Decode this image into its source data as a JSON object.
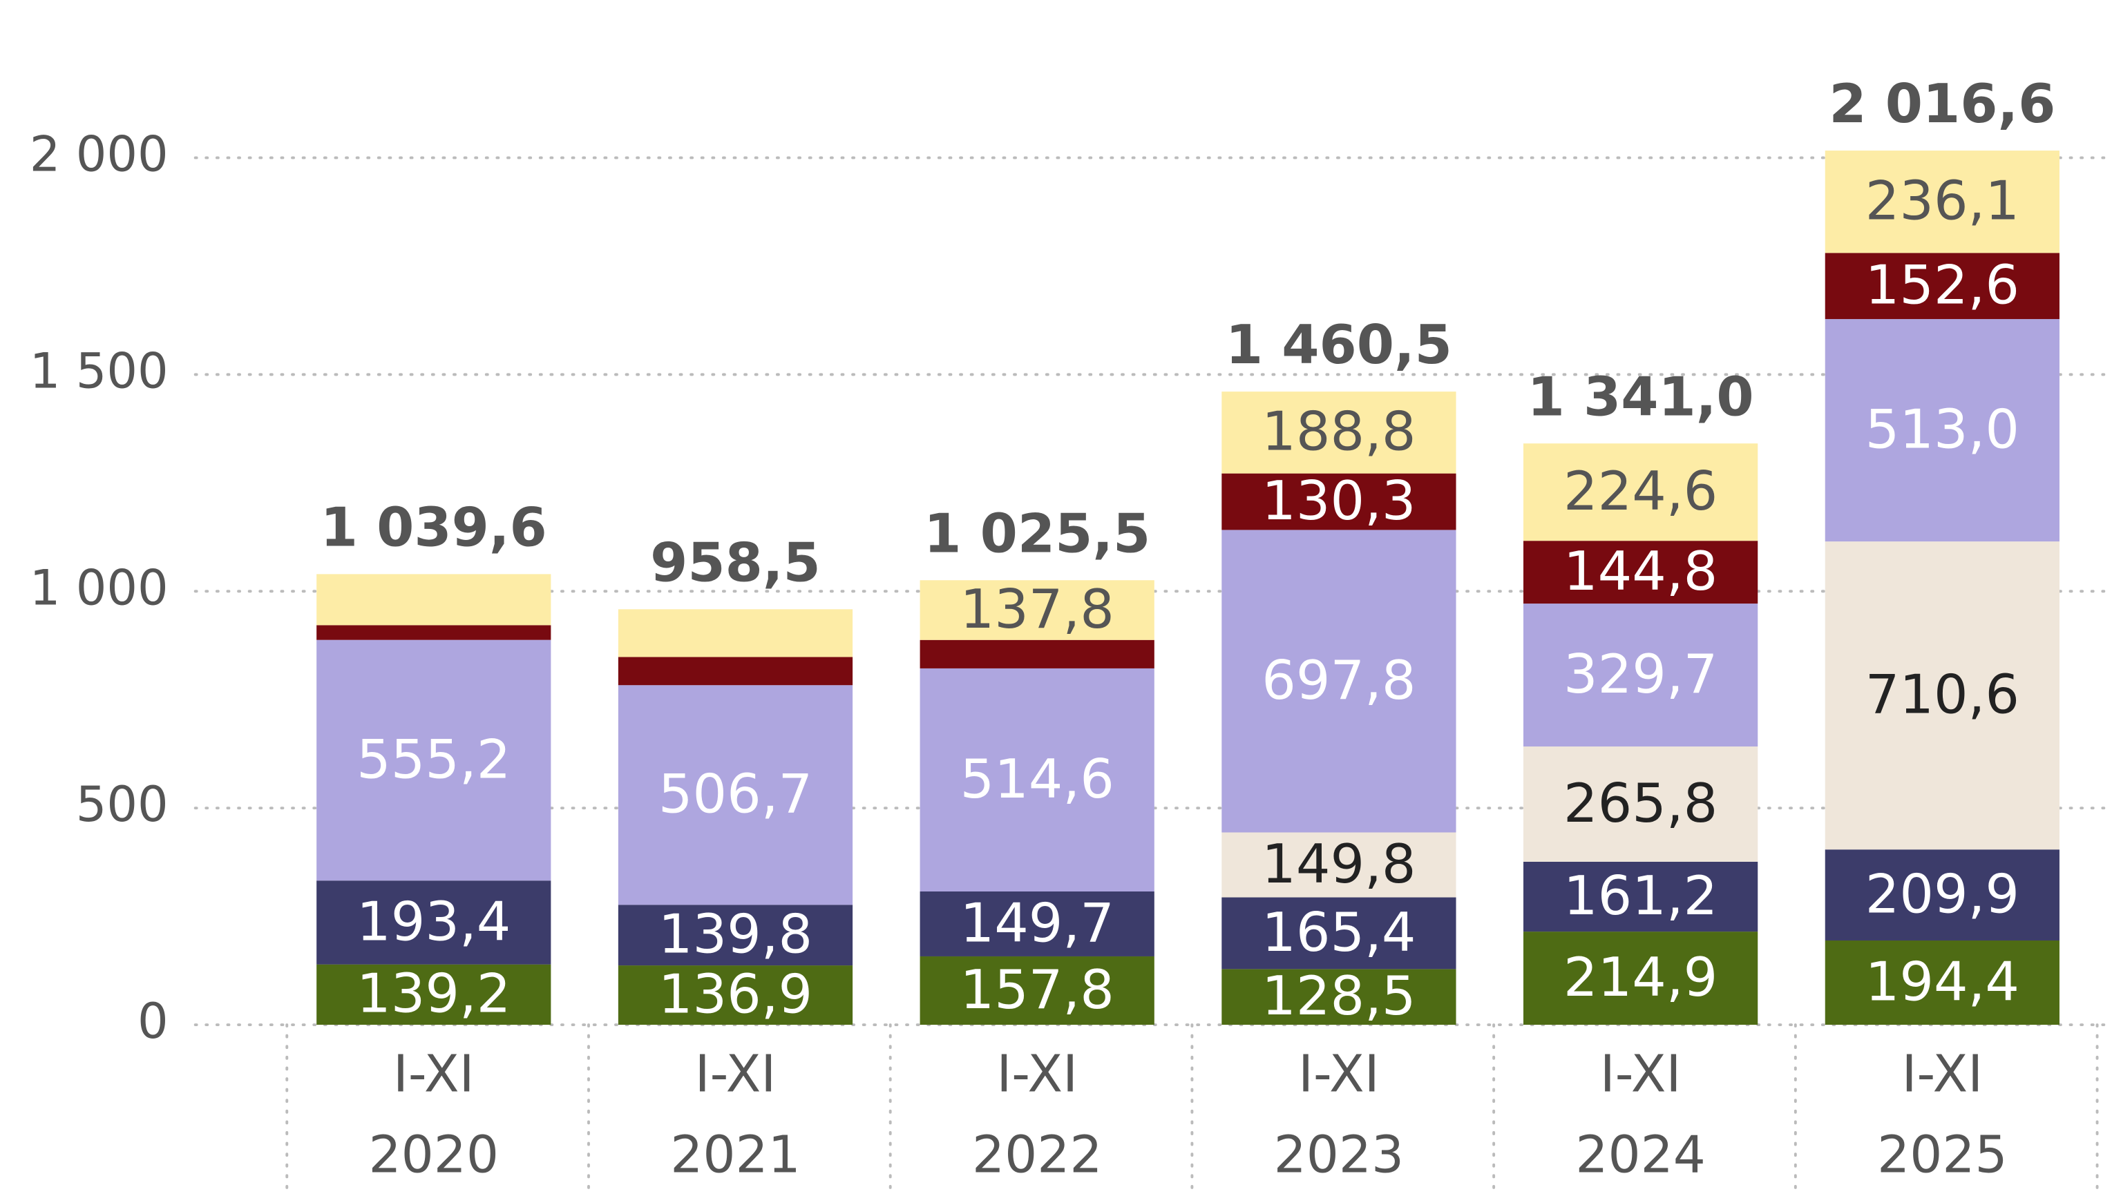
{
  "chart_data": {
    "type": "stacked-bar",
    "categories": [
      [
        "I-XI",
        "2020"
      ],
      [
        "I-XI",
        "2021"
      ],
      [
        "I-XI",
        "2022"
      ],
      [
        "I-XI",
        "2023"
      ],
      [
        "I-XI",
        "2024"
      ],
      [
        "I-XI",
        "2025"
      ]
    ],
    "series": [
      {
        "color": "#4e6b14",
        "label_color": "#ffffff",
        "values": [
          139.2,
          136.9,
          157.8,
          128.5,
          214.9,
          194.4
        ],
        "value_labels": [
          "139,2",
          "136,9",
          "157,8",
          "128,5",
          "214,9",
          "194,4"
        ]
      },
      {
        "color": "#3c3c6a",
        "label_color": "#ffffff",
        "values": [
          193.4,
          139.8,
          149.7,
          165.4,
          161.2,
          209.9
        ],
        "value_labels": [
          "193,4",
          "139,8",
          "149,7",
          "165,4",
          "161,2",
          "209,9"
        ]
      },
      {
        "color": "#efe6da",
        "label_color": "#222222",
        "values": [
          null,
          null,
          null,
          149.8,
          265.8,
          710.6
        ],
        "value_labels": [
          null,
          null,
          null,
          "149,8",
          "265,8",
          "710,6"
        ]
      },
      {
        "color": "#aea6df",
        "label_color": "#ffffff",
        "values": [
          555.2,
          506.7,
          514.6,
          697.8,
          329.7,
          513.0
        ],
        "value_labels": [
          "555,2",
          "506,7",
          "514,6",
          "697,8",
          "329,7",
          "513,0"
        ]
      },
      {
        "color": "#780a10",
        "label_color": "#ffffff",
        "values": [
          34,
          65,
          65.6,
          130.3,
          144.8,
          152.6
        ],
        "value_labels": [
          null,
          null,
          null,
          "130,3",
          "144,8",
          "152,6"
        ]
      },
      {
        "color": "#fdeca6",
        "label_color": "#555555",
        "values": [
          117.8,
          110.1,
          137.8,
          188.8,
          224.6,
          236.1
        ],
        "value_labels": [
          null,
          null,
          "137,8",
          "188,8",
          "224,6",
          "236,1"
        ]
      }
    ],
    "totals": [
      1039.6,
      958.5,
      1025.5,
      1460.5,
      1341.0,
      2016.6
    ],
    "total_labels": [
      "1 039,6",
      "958,5",
      "1 025,5",
      "1 460,5",
      "1 341,0",
      "2 016,6"
    ],
    "ylim": [
      0,
      2200
    ],
    "yticks": [
      0,
      500,
      {
        "value": 1000,
        "label": "1 000"
      },
      {
        "value": 1500,
        "label": "1 500"
      },
      {
        "value": 2000,
        "label": "2 000"
      }
    ],
    "grid": true
  }
}
